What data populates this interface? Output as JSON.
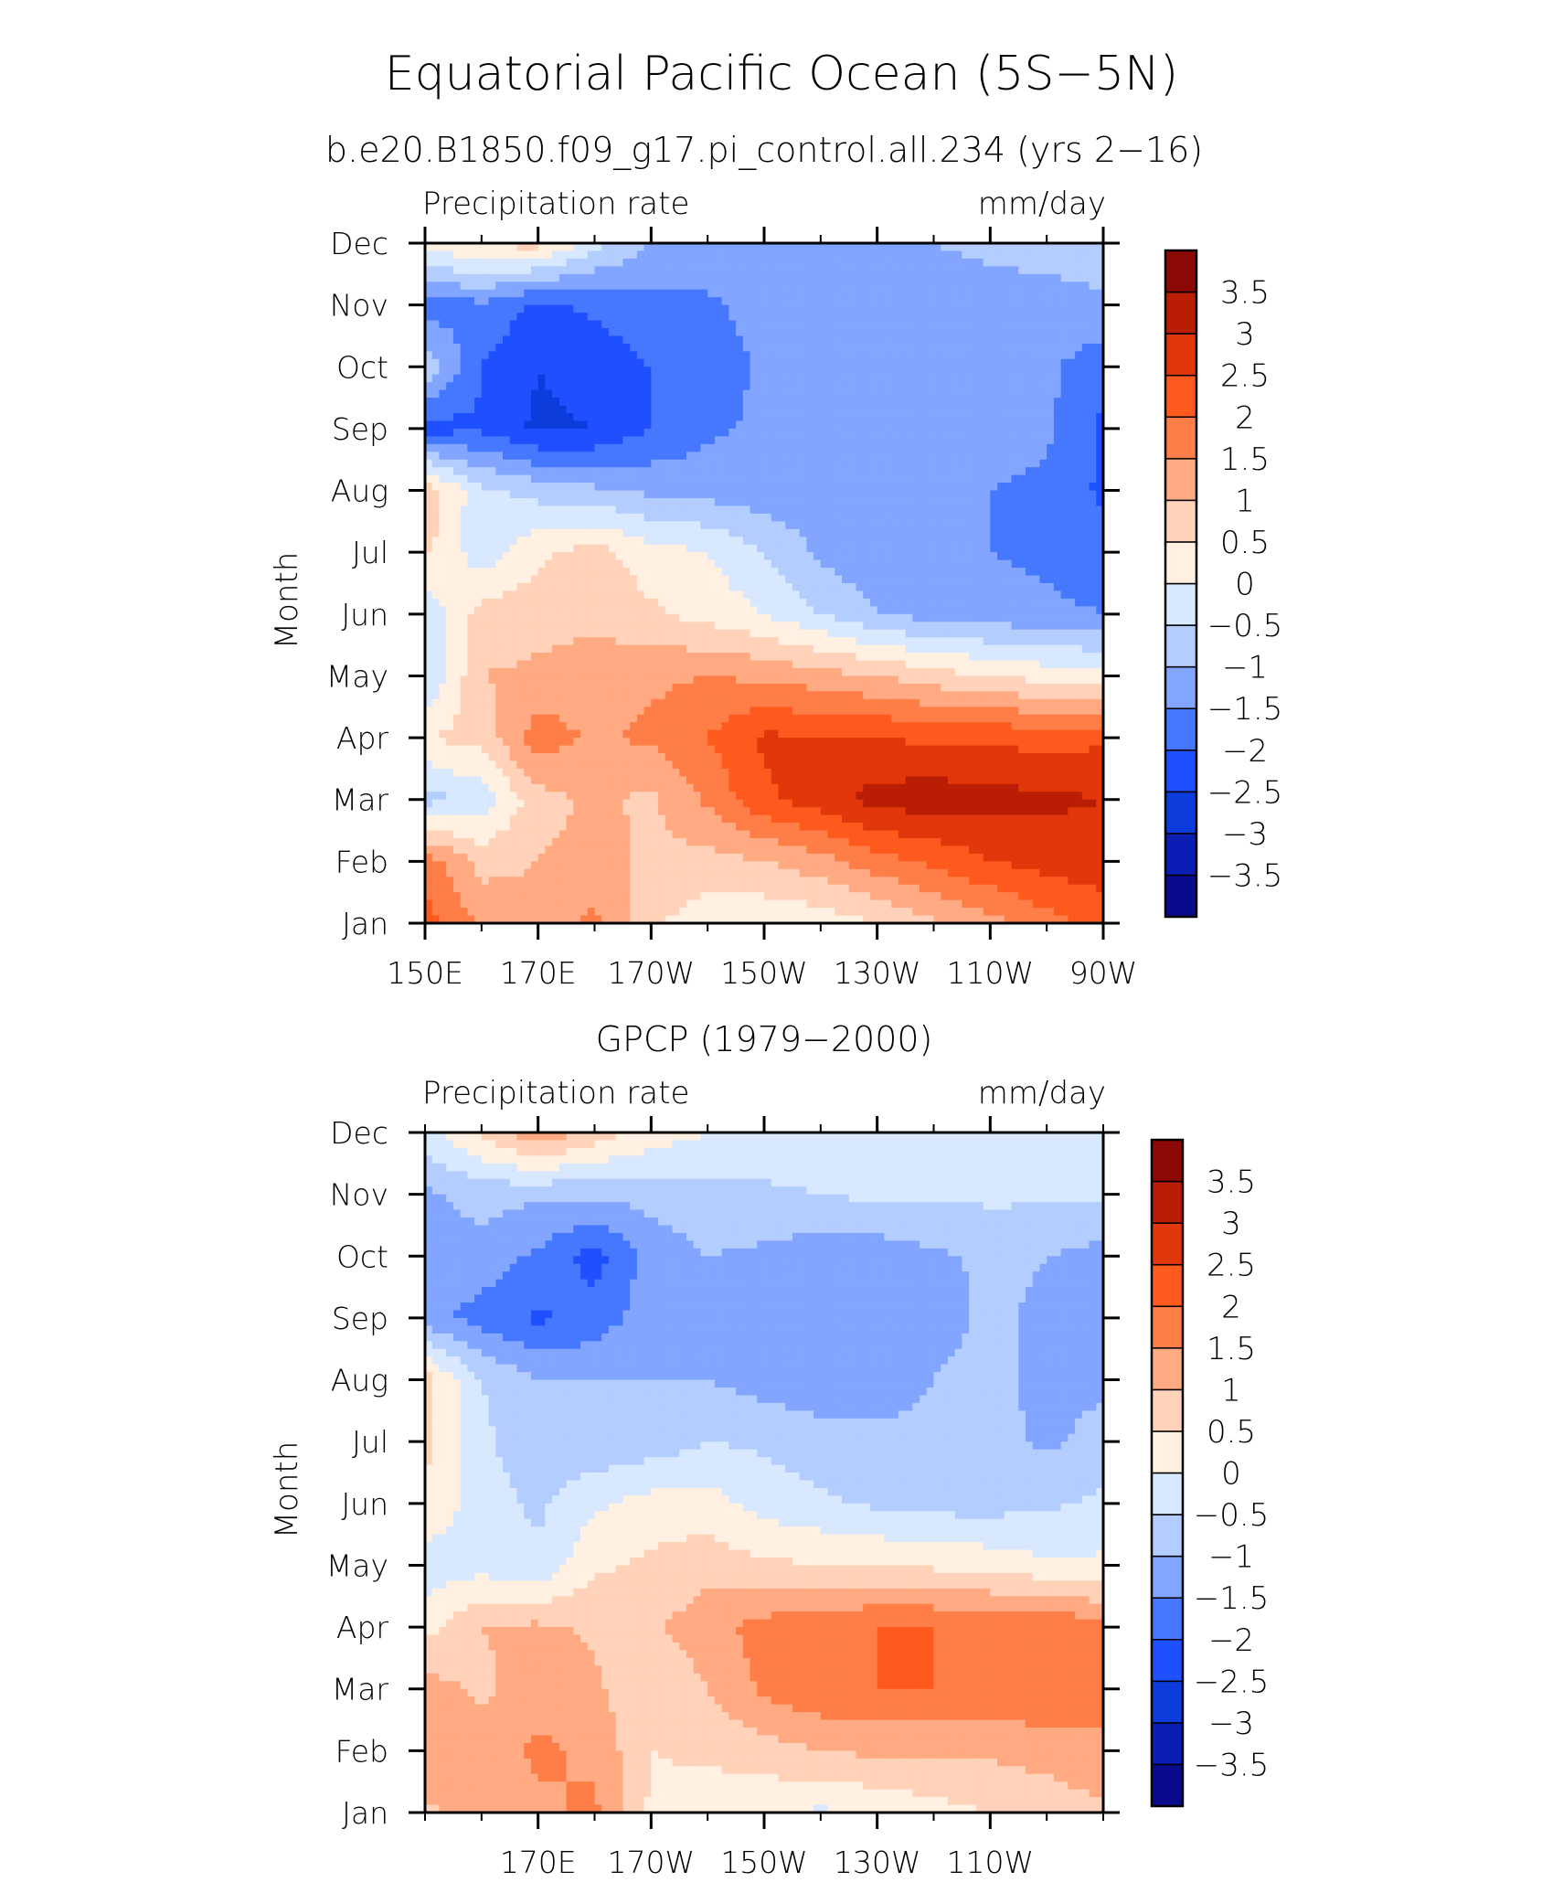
{
  "figure": {
    "title": "Equatorial Pacific Ocean (5S−5N)",
    "colorbar_colors": [
      "#0a0a8c",
      "#0a1eb4",
      "#0d3cdc",
      "#1e50ff",
      "#4678ff",
      "#82a5ff",
      "#b4cdff",
      "#d7e8ff",
      "#fff0e1",
      "#ffd2b9",
      "#ffaa82",
      "#ff7d46",
      "#ff5a1e",
      "#e1370a",
      "#b91e05",
      "#8c0a05"
    ],
    "colorbar_labels": [
      "−3.5",
      "−3",
      "−2.5",
      "−2",
      "−1.5",
      "−1",
      "−0.5",
      "0",
      "0.5",
      "1",
      "1.5",
      "2",
      "2.5",
      "3",
      "3.5"
    ],
    "contour_levels": [
      -3.5,
      -3,
      -2.5,
      -2,
      -1.5,
      -1,
      -0.5,
      0,
      0.5,
      1,
      1.5,
      2,
      2.5,
      3,
      3.5
    ]
  },
  "chart_data": [
    {
      "type": "heatmap",
      "title": "b.e20.B1850.f09_g17.pi_control.all.234 (yrs 2−16)",
      "left_label": "Precipitation rate",
      "right_label": "mm/day",
      "ylabel": "Month",
      "xlim": [
        150,
        270
      ],
      "ylim": [
        1,
        12
      ],
      "x_ticks": [
        150,
        170,
        190,
        210,
        230,
        250,
        270
      ],
      "x_tick_labels": [
        "150E",
        "170E",
        "170W",
        "150W",
        "130W",
        "110W",
        "90W"
      ],
      "y_ticks": [
        1,
        2,
        3,
        4,
        5,
        6,
        7,
        8,
        9,
        10,
        11,
        12
      ],
      "y_tick_labels": [
        "Jan",
        "Feb",
        "Mar",
        "Apr",
        "May",
        "Jun",
        "Jul",
        "Aug",
        "Sep",
        "Oct",
        "Nov",
        "Dec"
      ],
      "lon": [
        150,
        160,
        170,
        180,
        190,
        200,
        210,
        220,
        230,
        240,
        250,
        260,
        270
      ],
      "month": [
        1,
        2,
        3,
        4,
        5,
        6,
        7,
        8,
        9,
        10,
        11,
        12
      ],
      "values": [
        [
          2.2,
          1.4,
          1.2,
          1.6,
          0.6,
          0.2,
          0.1,
          0.2,
          0.5,
          0.9,
          1.3,
          1.8,
          2.2
        ],
        [
          1.8,
          0.8,
          1.0,
          1.2,
          0.9,
          0.8,
          1.0,
          1.3,
          1.8,
          2.1,
          2.5,
          2.7,
          2.8
        ],
        [
          -0.7,
          -0.3,
          0.8,
          1.1,
          0.9,
          1.6,
          2.4,
          2.8,
          3.2,
          3.3,
          3.2,
          3.1,
          3.0
        ],
        [
          0.5,
          0.7,
          1.8,
          1.4,
          1.6,
          2.0,
          2.6,
          2.5,
          2.5,
          2.4,
          2.4,
          2.3,
          2.4
        ],
        [
          -0.6,
          1.0,
          1.1,
          1.2,
          1.4,
          1.5,
          1.4,
          1.2,
          1.0,
          0.7,
          0.5,
          0.3,
          0.2
        ],
        [
          -0.4,
          0.7,
          0.8,
          0.9,
          0.6,
          0.3,
          0.0,
          -0.5,
          -1.0,
          -1.2,
          -1.3,
          -1.4,
          -1.5
        ],
        [
          0.6,
          -0.3,
          0.4,
          0.7,
          0.2,
          0.0,
          -0.5,
          -1.1,
          -1.4,
          -1.5,
          -1.5,
          -1.6,
          -1.8
        ],
        [
          0.9,
          -0.4,
          -0.7,
          -0.9,
          -1.1,
          -1.2,
          -1.3,
          -1.4,
          -1.5,
          -1.5,
          -1.5,
          -1.6,
          -2.1
        ],
        [
          -2.2,
          -2.1,
          -2.6,
          -2.5,
          -2.0,
          -1.6,
          -1.4,
          -1.3,
          -1.3,
          -1.3,
          -1.3,
          -1.4,
          -2.1
        ],
        [
          -0.6,
          -2.0,
          -2.5,
          -2.3,
          -2.0,
          -1.8,
          -1.4,
          -1.3,
          -1.3,
          -1.3,
          -1.3,
          -1.4,
          -1.8
        ],
        [
          -1.8,
          -1.6,
          -2.1,
          -1.9,
          -1.7,
          -1.6,
          -1.3,
          -1.3,
          -1.2,
          -1.2,
          -1.2,
          -1.2,
          -1.1
        ],
        [
          0.2,
          0.6,
          0.7,
          -0.3,
          -1.0,
          -1.1,
          -1.1,
          -1.0,
          -1.0,
          -1.0,
          -0.9,
          -0.8,
          -0.7
        ]
      ]
    },
    {
      "type": "heatmap",
      "title": "GPCP (1979−2000)",
      "left_label": "Precipitation rate",
      "right_label": "mm/day",
      "ylabel": "Month",
      "xlim": [
        150,
        270
      ],
      "ylim": [
        1,
        12
      ],
      "x_ticks": [
        170,
        190,
        210,
        230,
        250
      ],
      "x_tick_labels": [
        "170E",
        "170W",
        "150W",
        "130W",
        "110W"
      ],
      "y_ticks": [
        1,
        2,
        3,
        4,
        5,
        6,
        7,
        8,
        9,
        10,
        11,
        12
      ],
      "y_tick_labels": [
        "Jan",
        "Feb",
        "Mar",
        "Apr",
        "May",
        "Jun",
        "Jul",
        "Aug",
        "Sep",
        "Oct",
        "Nov",
        "Dec"
      ],
      "lon": [
        150,
        160,
        170,
        180,
        190,
        200,
        210,
        220,
        230,
        240,
        250,
        260,
        270
      ],
      "month": [
        1,
        2,
        3,
        4,
        5,
        6,
        7,
        8,
        9,
        10,
        11,
        12
      ],
      "values": [
        [
          0.9,
          1.2,
          1.4,
          1.6,
          0.4,
          0.2,
          0.1,
          -0.1,
          0.1,
          0.3,
          0.5,
          0.7,
          0.9
        ],
        [
          1.4,
          1.2,
          1.6,
          1.4,
          0.5,
          0.6,
          0.8,
          1.0,
          1.1,
          1.1,
          1.1,
          1.2,
          1.4
        ],
        [
          1.2,
          0.9,
          1.3,
          1.1,
          0.5,
          1.0,
          1.6,
          1.9,
          2.0,
          2.0,
          1.8,
          2.0,
          1.7
        ],
        [
          0.3,
          1.0,
          1.1,
          0.9,
          0.9,
          1.3,
          1.7,
          1.8,
          2.0,
          2.0,
          1.9,
          2.0,
          1.6
        ],
        [
          -0.3,
          -0.2,
          -0.4,
          0.4,
          0.6,
          0.8,
          0.6,
          0.5,
          0.5,
          0.4,
          0.3,
          0.1,
          0.1
        ],
        [
          0.5,
          -0.3,
          -0.6,
          -0.1,
          0.2,
          0.2,
          -0.2,
          -0.4,
          -0.6,
          -0.7,
          -0.7,
          -0.6,
          -0.4
        ],
        [
          0.6,
          -0.4,
          -0.8,
          -0.9,
          -0.8,
          -0.5,
          -0.6,
          -0.8,
          -0.9,
          -0.9,
          -0.8,
          -1.1,
          -0.8
        ],
        [
          0.7,
          -0.5,
          -1.0,
          -1.0,
          -1.0,
          -1.0,
          -1.2,
          -1.3,
          -1.2,
          -1.0,
          -0.8,
          -1.2,
          -1.1
        ],
        [
          -1.3,
          -1.7,
          -2.1,
          -1.8,
          -1.2,
          -1.1,
          -1.3,
          -1.4,
          -1.3,
          -1.2,
          -0.9,
          -1.1,
          -1.3
        ],
        [
          -1.3,
          -1.2,
          -1.6,
          -2.2,
          -1.3,
          -1.0,
          -1.1,
          -1.3,
          -1.3,
          -1.1,
          -0.9,
          -1.0,
          -1.2
        ],
        [
          -1.1,
          -0.8,
          -0.9,
          -0.9,
          -0.8,
          -0.7,
          -0.6,
          -0.5,
          -0.4,
          -0.4,
          -0.4,
          -0.4,
          -0.4
        ],
        [
          -0.2,
          0.6,
          1.4,
          0.8,
          0.3,
          0.0,
          -0.1,
          -0.2,
          -0.3,
          -0.3,
          -0.3,
          -0.3,
          -0.3
        ]
      ]
    }
  ]
}
